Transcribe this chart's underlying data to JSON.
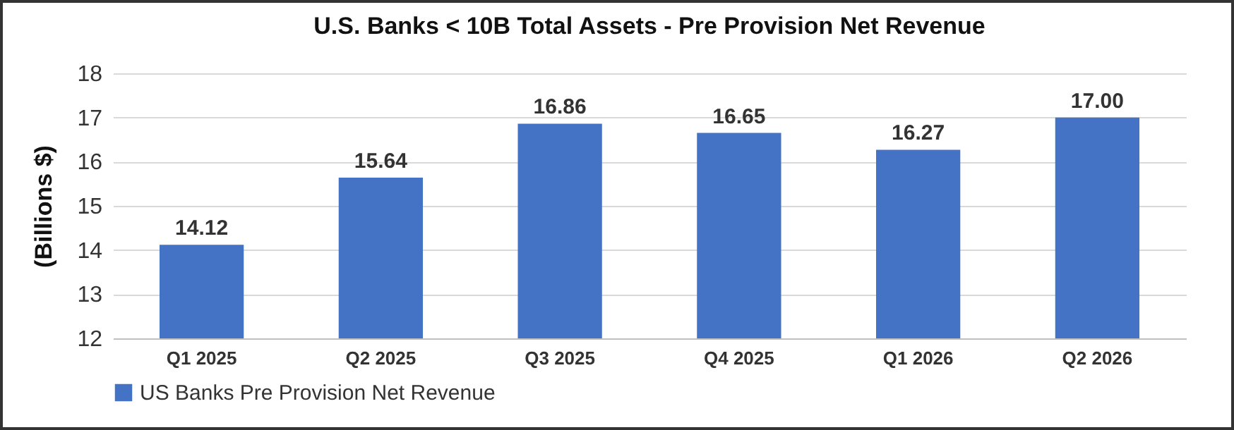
{
  "chart_data": {
    "type": "bar",
    "title": "U.S. Banks < 10B Total Assets - Pre Provision Net Revenue",
    "ylabel": "(Billions $)",
    "categories": [
      "Q1 2025",
      "Q2 2025",
      "Q3 2025",
      "Q4 2025",
      "Q1 2026",
      "Q2 2026"
    ],
    "series": [
      {
        "name": "US Banks Pre Provision Net Revenue",
        "color": "#4472c4",
        "values": [
          14.12,
          15.64,
          16.86,
          16.65,
          16.27,
          17.0
        ]
      }
    ],
    "value_labels": [
      "14.12",
      "15.64",
      "16.86",
      "16.65",
      "16.27",
      "17.00"
    ],
    "ylim": [
      12,
      18
    ],
    "yticks": [
      12,
      13,
      14,
      15,
      16,
      17,
      18
    ],
    "grid": "y",
    "legend": "bottom"
  }
}
